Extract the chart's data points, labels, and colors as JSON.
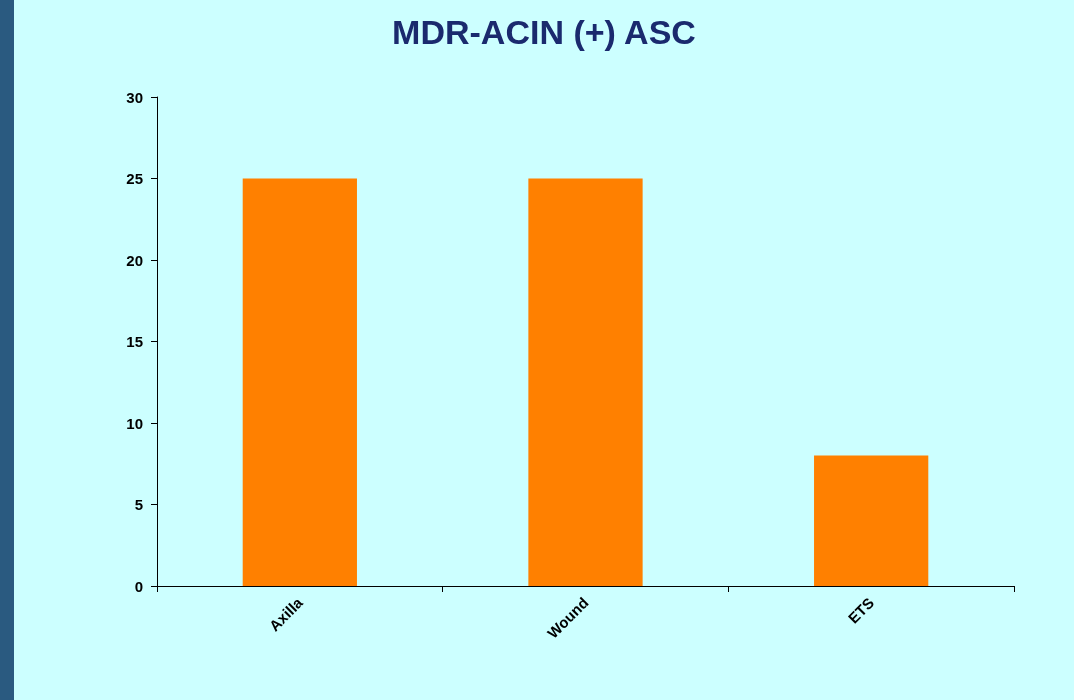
{
  "chart_data": {
    "type": "bar",
    "title": "MDR-ACIN (+) ASC",
    "categories": [
      "Axilla",
      "Wound",
      "ETS"
    ],
    "values": [
      25,
      25,
      8
    ],
    "color": "#ff8000",
    "ylim": [
      0,
      30
    ],
    "yticks": [
      0,
      5,
      10,
      15,
      20,
      25,
      30
    ],
    "grid": false
  }
}
